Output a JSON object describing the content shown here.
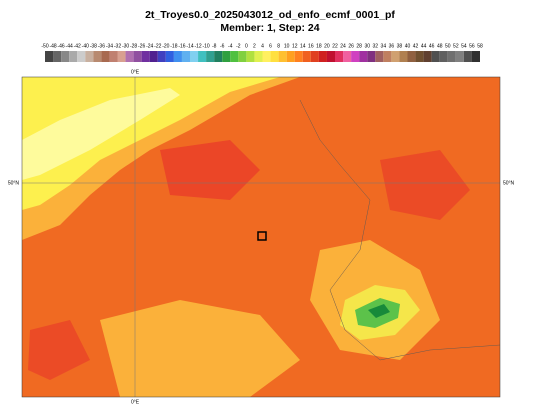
{
  "header": {
    "title": "2t_Troyes0.0_2025043012_od_enfo_ecmf_0001_pf",
    "subtitle": "Member: 1, Step: 24"
  },
  "colorbar": {
    "labels": [
      -50,
      -48,
      -46,
      -44,
      -42,
      -40,
      -38,
      -36,
      -34,
      -32,
      -30,
      -28,
      -26,
      -24,
      -22,
      -20,
      -18,
      -16,
      -14,
      -12,
      -10,
      -8,
      -6,
      -4,
      -2,
      0,
      2,
      4,
      6,
      8,
      10,
      12,
      14,
      16,
      18,
      20,
      22,
      24,
      26,
      28,
      30,
      32,
      34,
      36,
      38,
      40,
      42,
      44,
      46,
      48,
      50,
      52,
      54,
      56,
      58
    ]
  },
  "map": {
    "top_label": "0°E",
    "bottom_label": "0°E",
    "left_label": "50°N",
    "right_label": "50°N"
  }
}
